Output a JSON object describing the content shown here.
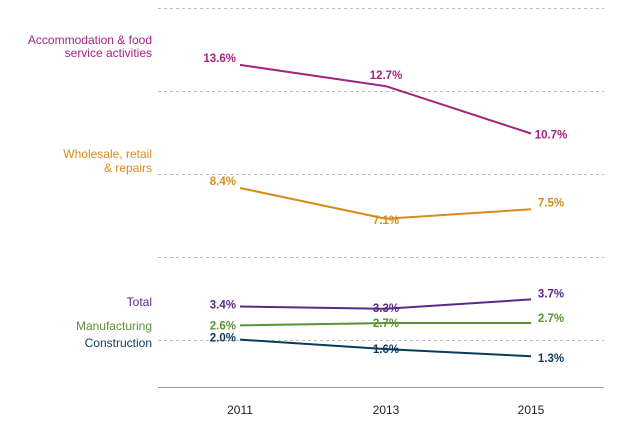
{
  "chart_data": {
    "type": "line",
    "title": "",
    "xlabel": "",
    "ylabel": "",
    "x": [
      "2011",
      "2013",
      "2015"
    ],
    "ylim": [
      0,
      16
    ],
    "grid": true,
    "legend": "left-inline",
    "series": [
      {
        "key": "accommodation",
        "name_lines": [
          "Accommodation & food",
          "service activities"
        ],
        "color": "#a3237f",
        "values": [
          13.6,
          12.7,
          10.7
        ],
        "labels": [
          "13.6%",
          "12.7%",
          "10.7%"
        ]
      },
      {
        "key": "wholesale",
        "name_lines": [
          "Wholesale, retail",
          "& repairs"
        ],
        "color": "#d58c1b",
        "values": [
          8.4,
          7.1,
          7.5
        ],
        "labels": [
          "8.4%",
          "7.1%",
          "7.5%"
        ]
      },
      {
        "key": "total",
        "name_lines": [
          "Total"
        ],
        "color": "#5b2a86",
        "values": [
          3.4,
          3.3,
          3.7
        ],
        "labels": [
          "3.4%",
          "3.3%",
          "3.7%"
        ]
      },
      {
        "key": "manufacturing",
        "name_lines": [
          "Manufacturing"
        ],
        "color": "#5a9234",
        "values": [
          2.6,
          2.7,
          2.7
        ],
        "labels": [
          "2.6%",
          "2.7%",
          "2.7%"
        ]
      },
      {
        "key": "construction",
        "name_lines": [
          "Construction"
        ],
        "color": "#0b3a5a",
        "values": [
          2.0,
          1.6,
          1.3
        ],
        "labels": [
          "2.0%",
          "1.6%",
          "1.3%"
        ]
      }
    ]
  }
}
